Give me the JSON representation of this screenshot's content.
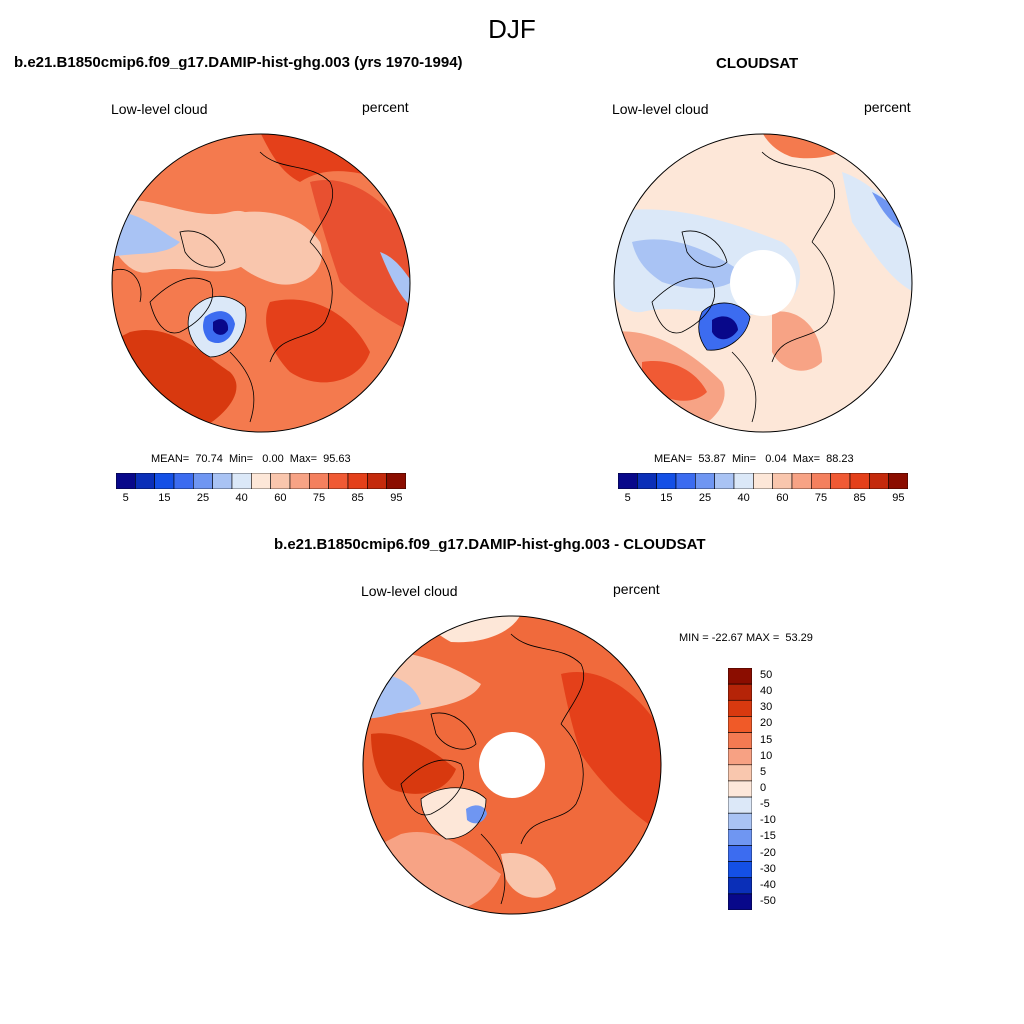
{
  "figure": {
    "season": "DJF",
    "panels": [
      {
        "id": "model",
        "title": "b.e21.B1850cmip6.f09_g17.DAMIP-hist-ghg.003 (yrs 1970-1994)",
        "left_label": "Low-level cloud",
        "right_label": "percent",
        "stats": "MEAN=  70.74  Min=   0.00  Max=  95.63"
      },
      {
        "id": "obs",
        "title": "CLOUDSAT",
        "left_label": "Low-level cloud",
        "right_label": "percent",
        "stats": "MEAN=  53.87  Min=   0.04  Max=  88.23"
      },
      {
        "id": "diff",
        "title": "b.e21.B1850cmip6.f09_g17.DAMIP-hist-ghg.003 - CLOUDSAT",
        "left_label": "Low-level cloud",
        "right_label": "percent",
        "stats": "MIN = -22.67 MAX =  53.29"
      }
    ]
  },
  "colorbar_abs": {
    "tick_labels": [
      "5",
      "15",
      "25",
      "40",
      "60",
      "75",
      "85",
      "95"
    ],
    "colors": [
      "#08088a",
      "#0a2fb8",
      "#1450e6",
      "#3c6cf0",
      "#6f96f2",
      "#a9c3f4",
      "#dbe8f8",
      "#fde7d8",
      "#f9c6ad",
      "#f7a385",
      "#f4805e",
      "#f05a34",
      "#e4401a",
      "#c42a0c",
      "#8b0d00"
    ]
  },
  "colorbar_diff": {
    "tick_labels": [
      "50",
      "40",
      "30",
      "20",
      "15",
      "10",
      "5",
      "0",
      "-5",
      "-10",
      "-15",
      "-20",
      "-30",
      "-40",
      "-50"
    ],
    "colors": [
      "#8b0d00",
      "#b52408",
      "#d8390f",
      "#f05a28",
      "#f47a52",
      "#f7a183",
      "#f9c7ae",
      "#fde7da",
      "#dce8f8",
      "#a9c3f4",
      "#6f96f2",
      "#3c6cf0",
      "#1450e6",
      "#0a2fb8",
      "#08088a"
    ]
  },
  "maps": {
    "model": {
      "base": "#f06a3c",
      "has_pole_hole": false
    },
    "obs": {
      "base": "#f7b79a",
      "has_pole_hole": true
    },
    "diff": {
      "base": "#f06a3c",
      "has_pole_hole": true
    }
  }
}
